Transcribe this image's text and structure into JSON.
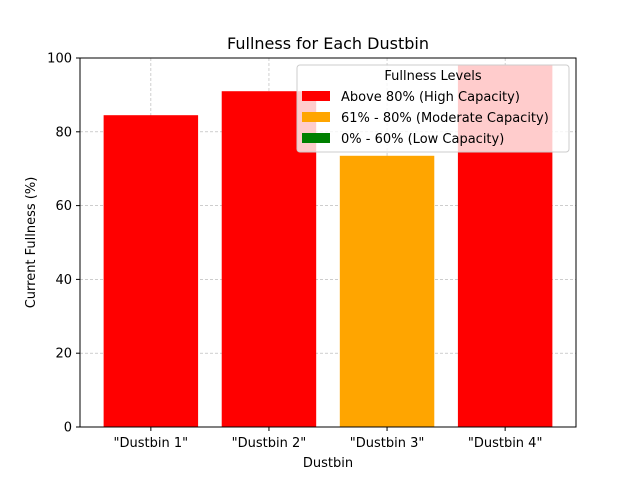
{
  "chart_data": {
    "type": "bar",
    "title": "Fullness for Each Dustbin",
    "xlabel": "Dustbin",
    "ylabel": "Current Fullness (%)",
    "categories": [
      "\"Dustbin 1\"",
      "\"Dustbin 2\"",
      "\"Dustbin 3\"",
      "\"Dustbin 4\""
    ],
    "values": [
      84.5,
      91,
      73.5,
      98
    ],
    "bar_colors": [
      "#ff0000",
      "#ff0000",
      "#ffa500",
      "#ff0000"
    ],
    "ylim": [
      0,
      100
    ],
    "yticks": [
      0,
      20,
      40,
      60,
      80,
      100
    ],
    "grid": true,
    "legend": {
      "title": "Fullness Levels",
      "placement": "top-right",
      "entries": [
        {
          "label": "Above 80% (High Capacity)",
          "color": "#ff0000"
        },
        {
          "label": "61% - 80% (Moderate Capacity)",
          "color": "#ffa500"
        },
        {
          "label": "0% - 60% (Low Capacity)",
          "color": "#008000"
        }
      ]
    }
  }
}
